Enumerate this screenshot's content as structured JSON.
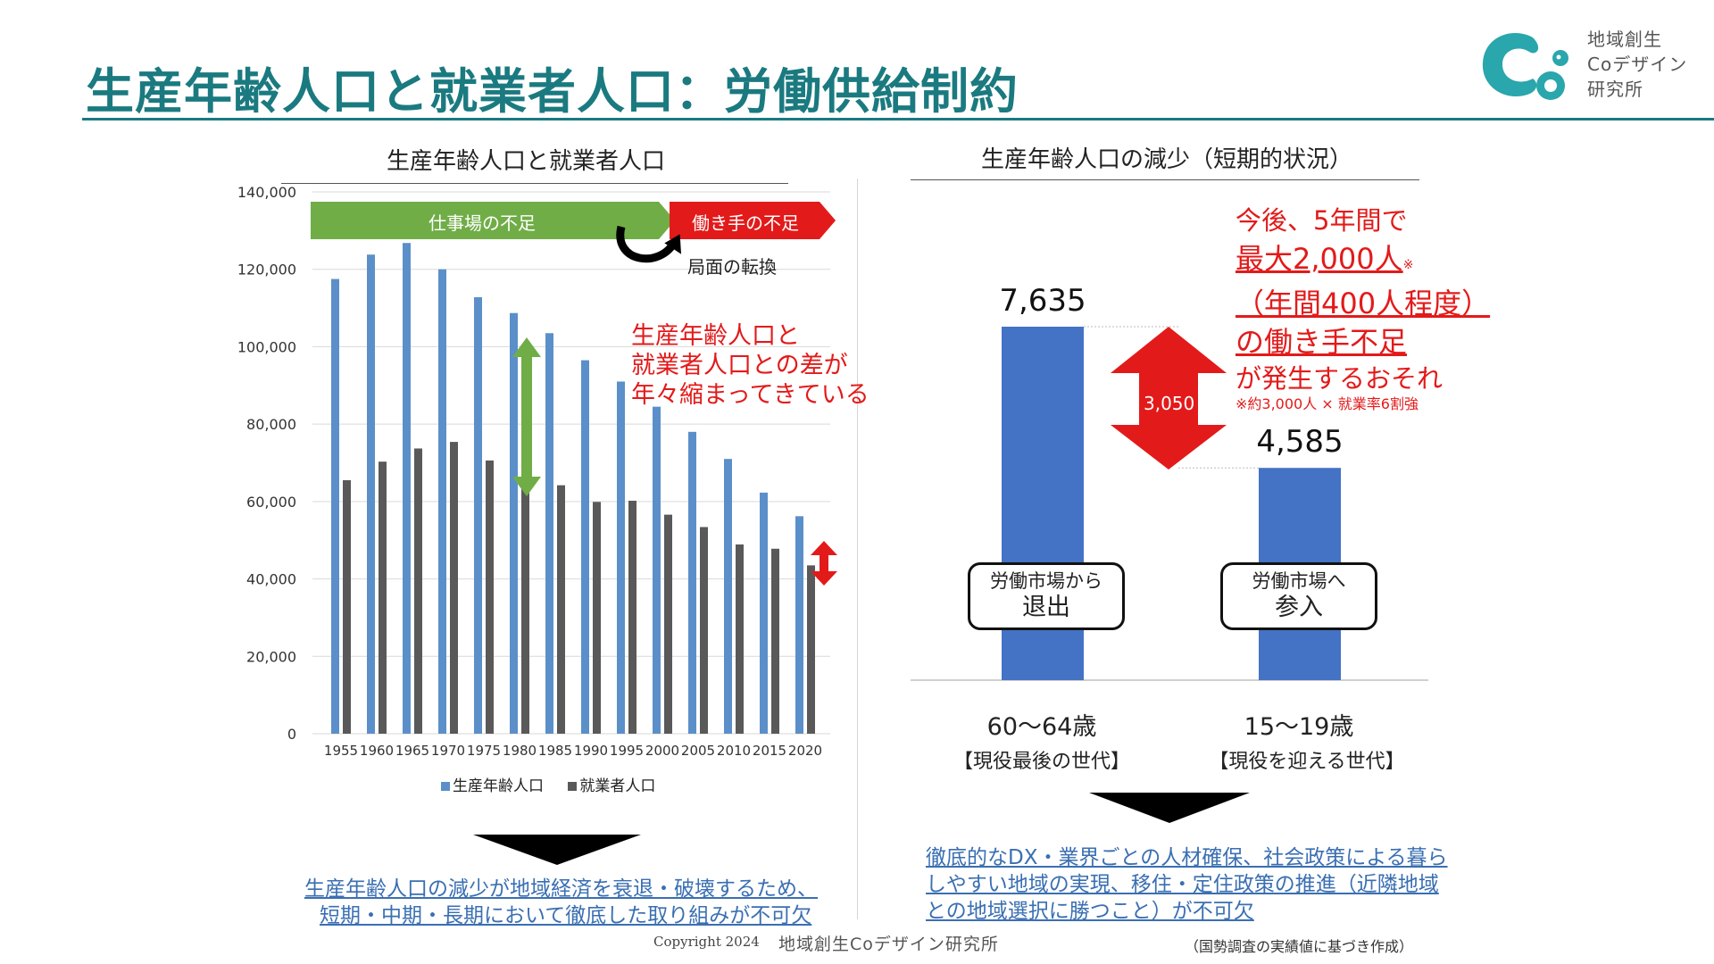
{
  "header": {
    "title": "生産年齢人口と就業者人口：労働供給制約",
    "logo_lines": [
      "地域創生",
      "Coデザイン",
      "研究所"
    ]
  },
  "left_chart": {
    "title": "生産年齢人口と就業者人口",
    "green_banner": "仕事場の不足",
    "red_banner": "働き手の不足",
    "turn_label": "局面の転換",
    "gap_note": [
      "生産年齢人口と",
      "就業者人口との差が",
      "年々縮まってきている"
    ],
    "conclusion": [
      "生産年齢人口の減少が地域経済を衰退・破壊するため、",
      "短期・中期・長期において徹底した取り組みが不可欠"
    ]
  },
  "right_chart": {
    "title": "生産年齢人口の減少（短期的状況）",
    "diff_label": "3,050",
    "left_callout": [
      "労働市場から",
      "退出"
    ],
    "right_callout": [
      "労働市場へ",
      "参入"
    ],
    "gen_left": "【現役最後の世代】",
    "gen_right": "【現役を迎える世代】",
    "message": {
      "line1": "今後、5年間で",
      "line2": "最大2,000人",
      "line2_mark": "※",
      "line3": "（年間400人程度）",
      "line4": "の働き手不足",
      "line5": "が発生するおそれ",
      "footnote": "※約3,000人 × 就業率6割強"
    },
    "conclusion": [
      "徹底的なDX・業界ごとの人材確保、社会政策による暮ら",
      "しやすい地域の実現、移住・定住政策の推進（近隣地域",
      "との地域選択に勝つこと）が不可欠"
    ]
  },
  "footer": {
    "copyright": "Copyright 2024",
    "org": "地域創生Coデザイン研究所",
    "source": "（国勢調査の実績値に基づき作成）"
  },
  "colors": {
    "title_teal": "#1a7a80",
    "blue_bar": "#5b8fc9",
    "gray_bar": "#595959",
    "right_bar": "#4472c4",
    "green_banner": "#70ad47",
    "red": "#e31a1a",
    "link_blue": "#3a6fb2"
  },
  "chart_data": [
    {
      "type": "bar",
      "categories": [
        "1955",
        "1960",
        "1965",
        "1970",
        "1975",
        "1980",
        "1985",
        "1990",
        "1995",
        "2000",
        "2005",
        "2010",
        "2015",
        "2020"
      ],
      "series": [
        {
          "name": "生産年齢人口",
          "values": [
            117500,
            123800,
            126800,
            120000,
            112800,
            108700,
            103500,
            96500,
            91000,
            84500,
            78000,
            71000,
            62300,
            56200
          ]
        },
        {
          "name": "就業者人口",
          "values": [
            65500,
            70300,
            73700,
            75400,
            70600,
            68500,
            64200,
            59900,
            60200,
            56600,
            53400,
            48900,
            47800,
            43500
          ]
        }
      ],
      "ylim": [
        0,
        140000
      ],
      "yticks": [
        "0",
        "20,000",
        "40,000",
        "60,000",
        "80,000",
        "100,000",
        "120,000",
        "140,000"
      ],
      "legend_position": "bottom",
      "grid": true
    },
    {
      "type": "bar",
      "categories": [
        "60～64歳",
        "15～19歳"
      ],
      "values": [
        7635,
        4585
      ],
      "value_labels": [
        "7,635",
        "4,585"
      ],
      "ylim": [
        0,
        9500
      ],
      "grid": false
    }
  ]
}
